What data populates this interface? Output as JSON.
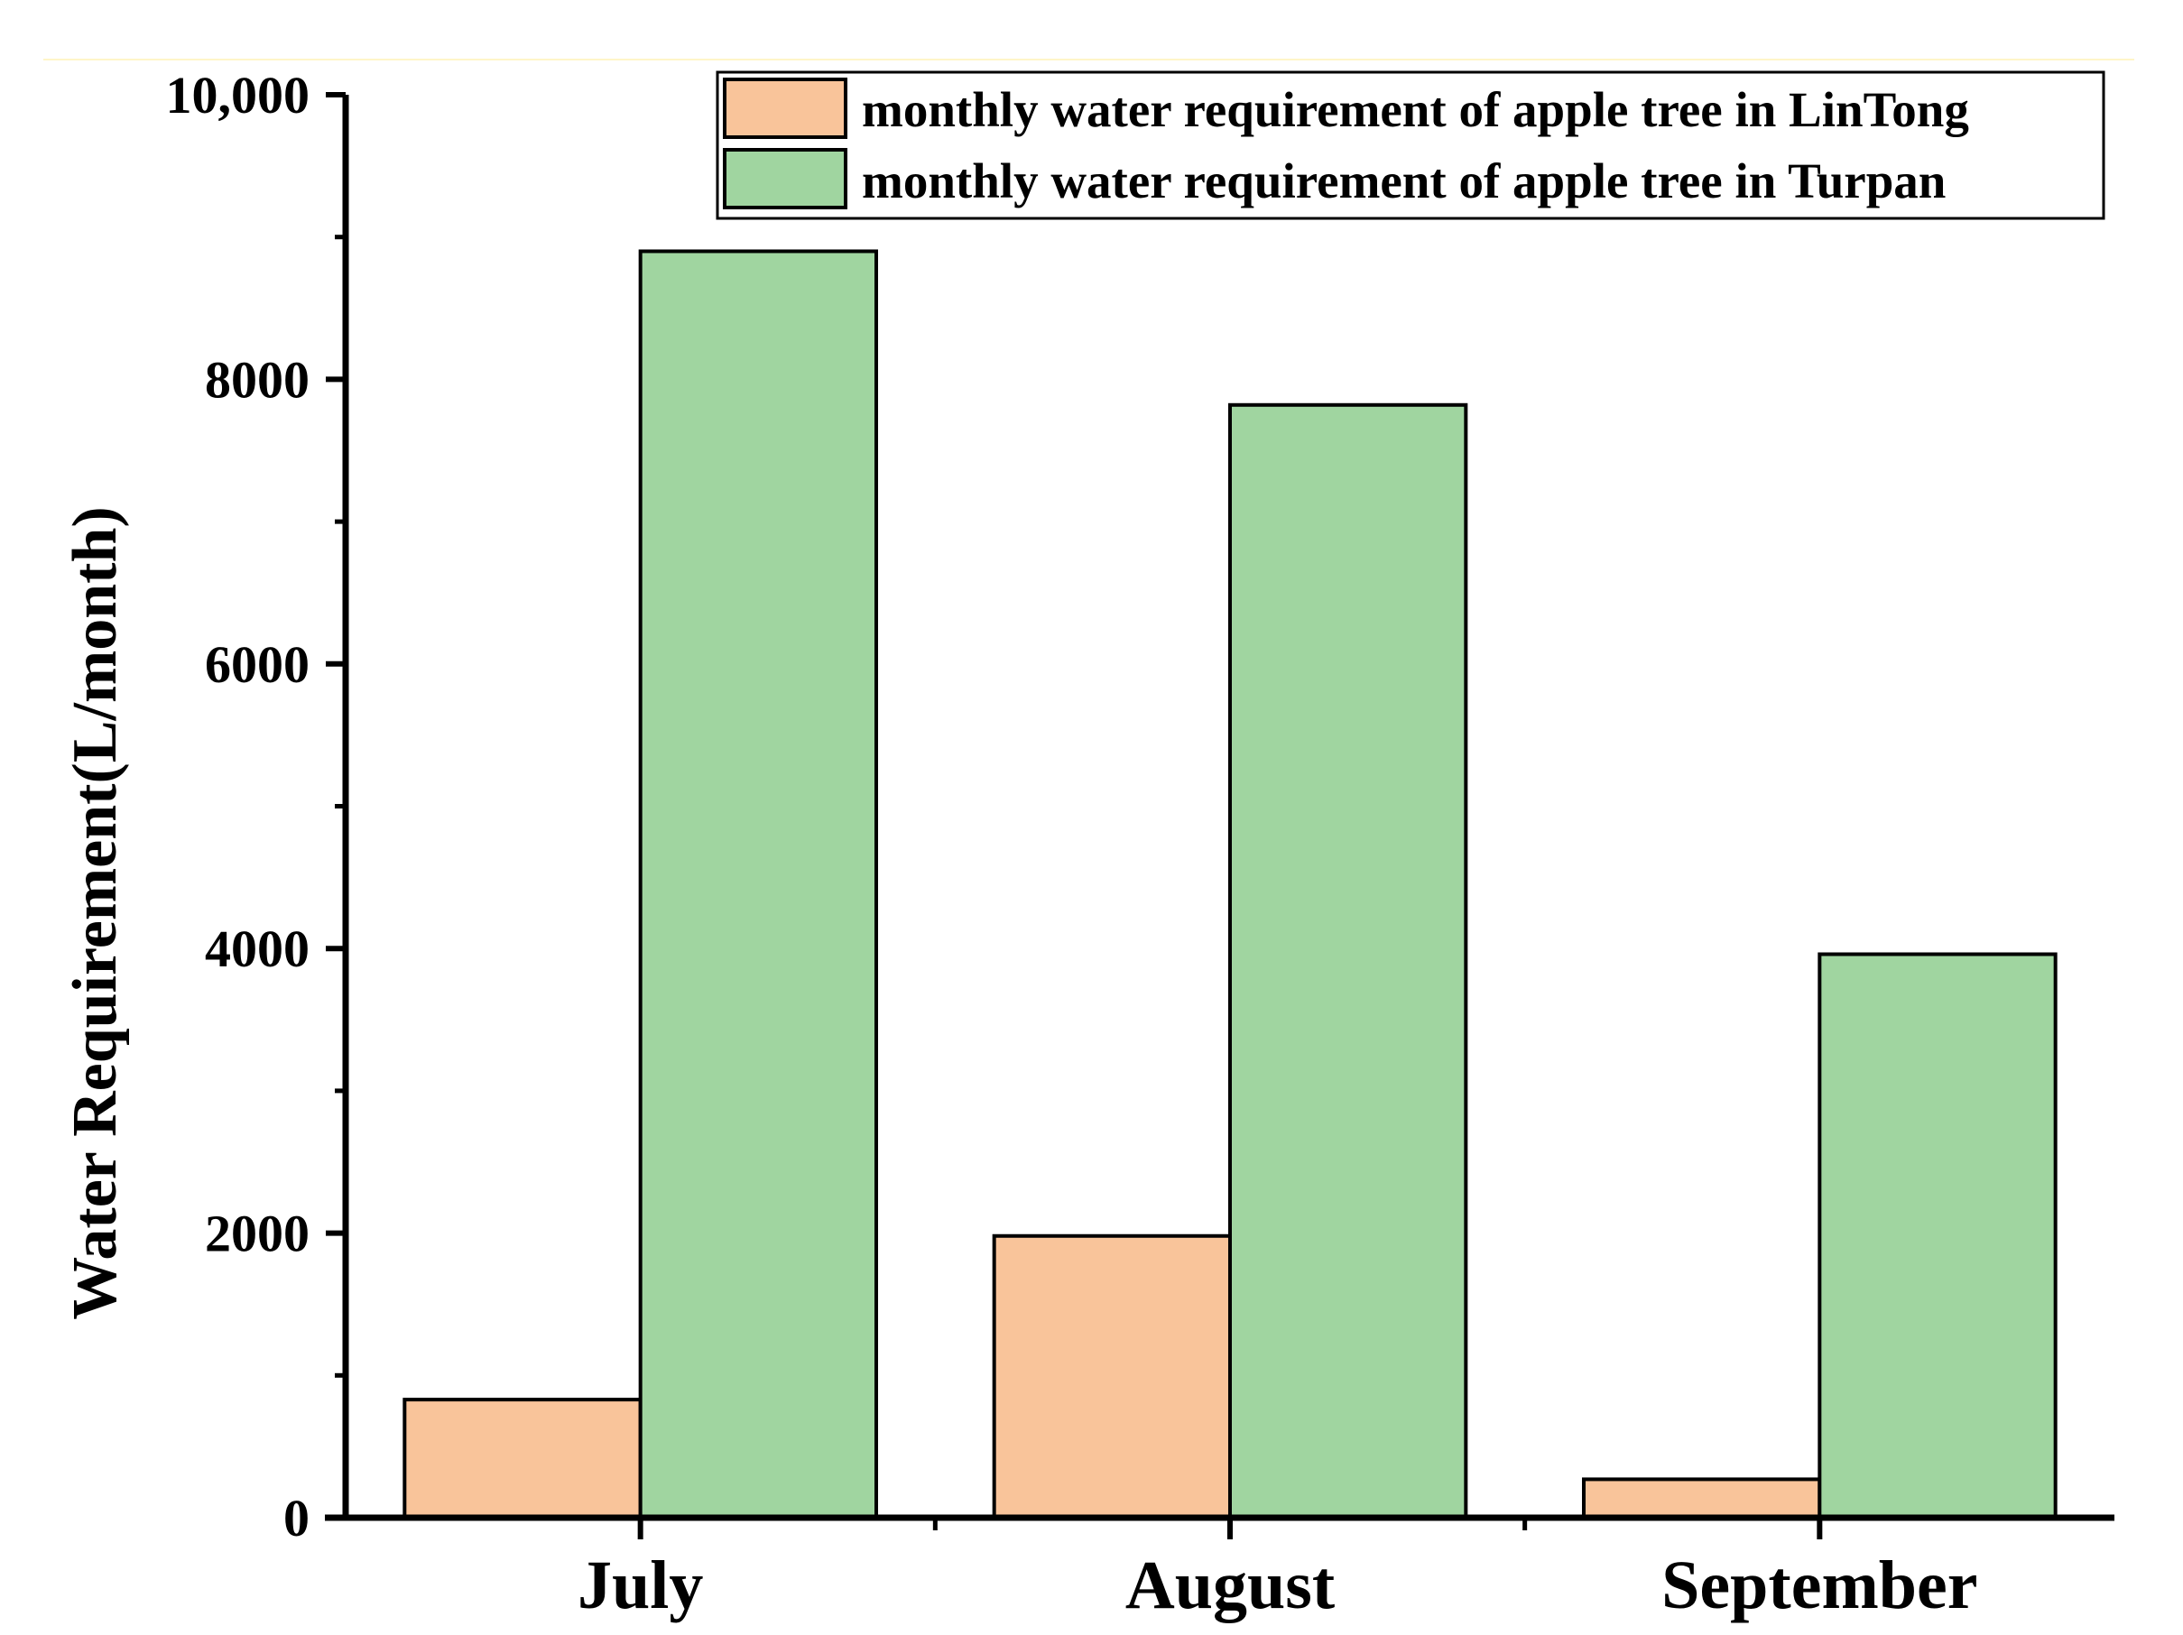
{
  "chart_data": {
    "type": "bar",
    "title": "",
    "xlabel": "",
    "ylabel": "Water Requirement(L/month)",
    "ylim": [
      0,
      10000
    ],
    "yticks": [
      0,
      2000,
      4000,
      6000,
      8000,
      10000
    ],
    "ytick_labels": [
      "0",
      "2000",
      "4000",
      "6000",
      "8000",
      "10,000"
    ],
    "grid": false,
    "legend_position": "top-right",
    "categories": [
      "July",
      "August",
      "September"
    ],
    "series": [
      {
        "name": "monthly water requirement of apple tree in LinTong",
        "color": "#F9C49A",
        "values": [
          830,
          1980,
          270
        ]
      },
      {
        "name": "monthly water requirement of apple tree in Turpan",
        "color": "#A0D5A0",
        "values": [
          8900,
          7820,
          3960
        ]
      }
    ],
    "top_rule_color": "#FFF5C8"
  }
}
